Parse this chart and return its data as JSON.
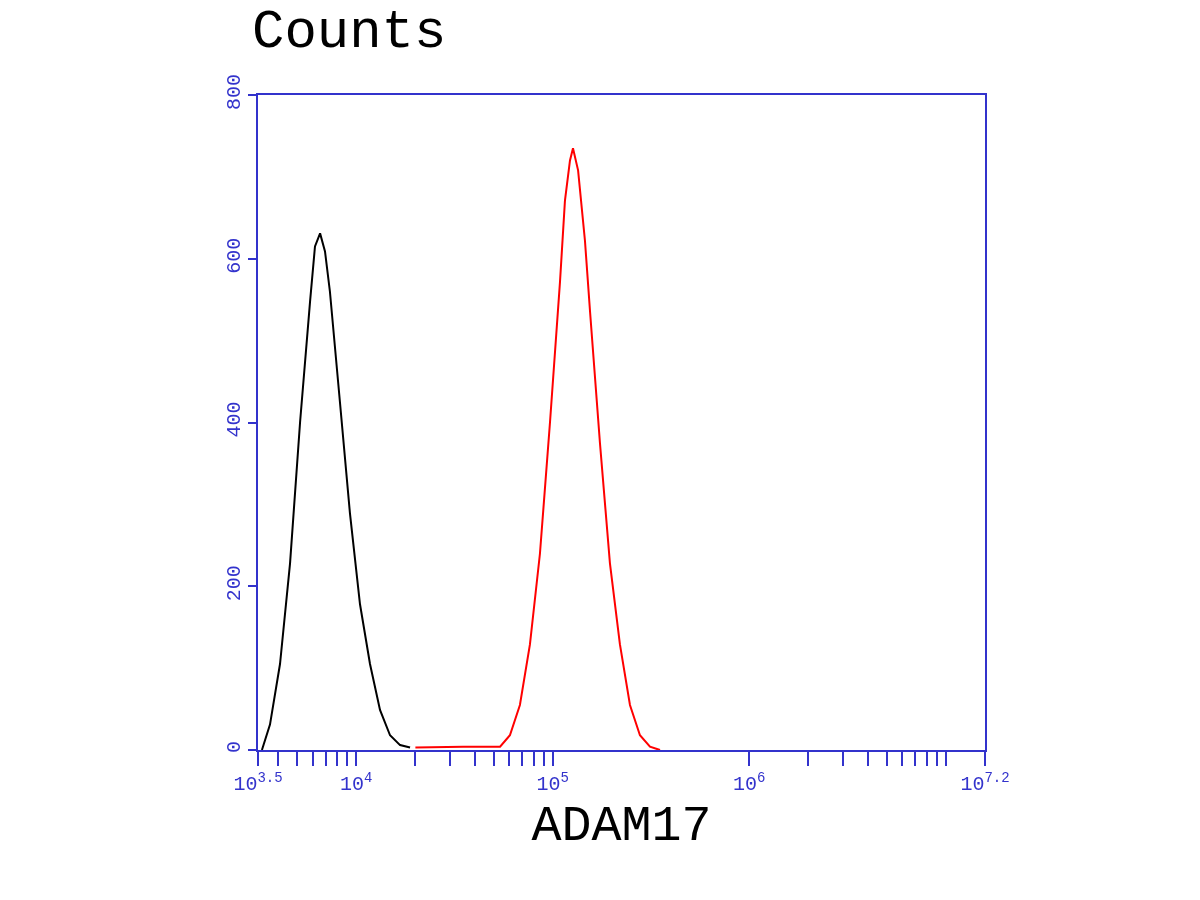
{
  "chart_data": {
    "type": "line",
    "title": "Counts",
    "xlabel": "ADAM17",
    "log": "x",
    "marker": "none",
    "line_style": "solid",
    "xlim": [
      3162.28,
      15848932
    ],
    "ylim": [
      0,
      800
    ],
    "xticks": [
      {
        "value": 3162.28,
        "label": "10$^{3.5}$"
      },
      {
        "value": 4000,
        "label": null
      },
      {
        "value": 5000,
        "label": null
      },
      {
        "value": 6000,
        "label": null
      },
      {
        "value": 7000,
        "label": null
      },
      {
        "value": 8000,
        "label": null
      },
      {
        "value": 9000,
        "label": null
      },
      {
        "value": 10000,
        "label": "10$^{4}$"
      },
      {
        "value": 20000,
        "label": null
      },
      {
        "value": 30000,
        "label": null
      },
      {
        "value": 40000,
        "label": null
      },
      {
        "value": 50000,
        "label": null
      },
      {
        "value": 60000,
        "label": null
      },
      {
        "value": 70000,
        "label": null
      },
      {
        "value": 80000,
        "label": null
      },
      {
        "value": 90000,
        "label": null
      },
      {
        "value": 100000,
        "label": "10$^{5}$"
      },
      {
        "value": 1000000,
        "label": "10$^{6}$"
      },
      {
        "value": 2000000,
        "label": null
      },
      {
        "value": 3000000,
        "label": null
      },
      {
        "value": 4000000,
        "label": null
      },
      {
        "value": 5000000,
        "label": null
      },
      {
        "value": 6000000,
        "label": null
      },
      {
        "value": 7000000,
        "label": null
      },
      {
        "value": 8000000,
        "label": null
      },
      {
        "value": 9000000,
        "label": null
      },
      {
        "value": 10000000,
        "label": null
      },
      {
        "value": 15848932,
        "label": "10$^{7.2}$"
      }
    ],
    "yticks": [
      0,
      200,
      400,
      600,
      800
    ],
    "series": [
      {
        "color": "#000000",
        "x": [
          3311,
          3639,
          4093,
          4603,
          5176,
          5821,
          6166,
          6546,
          6934,
          7345,
          8260,
          9290,
          10450,
          11750,
          13210,
          14860,
          16710,
          18790
        ],
        "values": [
          0,
          31,
          105,
          228,
          400,
          548,
          615,
          631,
          609,
          560,
          425,
          289,
          178,
          105,
          49,
          18,
          6,
          3
        ]
      },
      {
        "color": "#ff0000",
        "x": [
          20000,
          35000,
          53950,
          60560,
          68080,
          76560,
          86100,
          96830,
          108900,
          115400,
          122400,
          126800,
          134600,
          145900,
          154900,
          173900,
          195500,
          219800,
          247200,
          277900,
          312600,
          351600
        ],
        "values": [
          3,
          4,
          4,
          18,
          55,
          129,
          240,
          400,
          572,
          671,
          720,
          735,
          708,
          622,
          535,
          375,
          228,
          129,
          55,
          18,
          4,
          0
        ]
      }
    ]
  }
}
